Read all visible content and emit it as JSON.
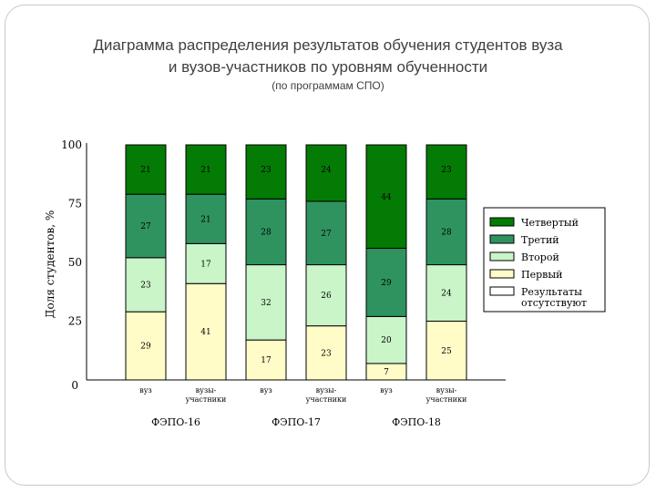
{
  "slide": {
    "title_line1": "Диаграмма распределения результатов обучения студентов вуза",
    "title_line2": "и вузов-участников по уровням обученности",
    "subtitle": "(по программам СПО)"
  },
  "colors": {
    "Четвертый": "#047b04",
    "Третий": "#2f9360",
    "Второй": "#c9f5c9",
    "Первый": "#fffcc8",
    "Результаты отсутствуют": "#ffffff"
  },
  "chart_data": {
    "type": "bar",
    "stacked": true,
    "ylabel": "Доля студентов, %",
    "ylim": [
      0,
      100
    ],
    "yticks": [
      0,
      25,
      50,
      75,
      100
    ],
    "grid": false,
    "legend_position": "right",
    "legend": [
      "Четвертый",
      "Третий",
      "Второй",
      "Первый",
      "Результаты отсутствуют"
    ],
    "legend_lines": [
      [
        "Четвертый"
      ],
      [
        "Третий"
      ],
      [
        "Второй"
      ],
      [
        "Первый"
      ],
      [
        "Результаты",
        "отсутствуют"
      ]
    ],
    "categories": [
      [
        "вуз"
      ],
      [
        "вузы-",
        "участники"
      ],
      [
        "вуз"
      ],
      [
        "вузы-",
        "участники"
      ],
      [
        "вуз"
      ],
      [
        "вузы-",
        "участники"
      ]
    ],
    "groups": [
      {
        "label": "ФЭПО-16",
        "bars": [
          0,
          1
        ]
      },
      {
        "label": "ФЭПО-17",
        "bars": [
          2,
          3
        ]
      },
      {
        "label": "ФЭПО-18",
        "bars": [
          4,
          5
        ]
      }
    ],
    "series": [
      {
        "name": "Первый",
        "values": [
          29,
          41,
          17,
          23,
          7,
          25
        ]
      },
      {
        "name": "Второй",
        "values": [
          23,
          17,
          32,
          26,
          20,
          24
        ]
      },
      {
        "name": "Третий",
        "values": [
          27,
          21,
          28,
          27,
          29,
          28
        ]
      },
      {
        "name": "Четвертый",
        "values": [
          21,
          21,
          23,
          24,
          44,
          23
        ]
      }
    ]
  }
}
